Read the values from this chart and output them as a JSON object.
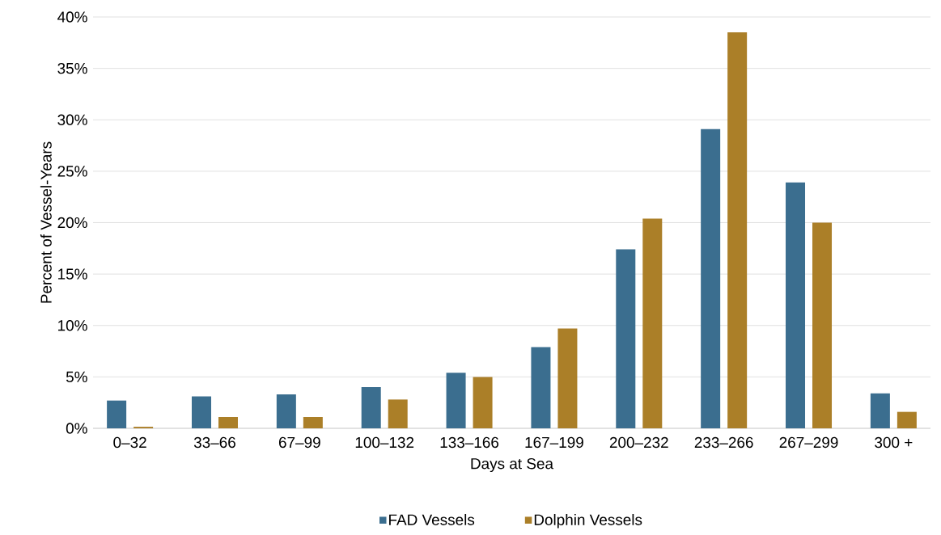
{
  "chart_data": {
    "type": "bar",
    "xlabel": "Days at Sea",
    "ylabel": "Percent of Vessel-Years",
    "categories": [
      "0–32",
      "33–66",
      "67–99",
      "100–132",
      "133–166",
      "167–199",
      "200–232",
      "233–266",
      "267–299",
      "300 +"
    ],
    "series": [
      {
        "name": "FAD Vessels",
        "color": "#3b6e8f",
        "values": [
          2.7,
          3.1,
          3.3,
          4.0,
          5.4,
          7.9,
          17.4,
          29.1,
          23.9,
          3.4
        ]
      },
      {
        "name": "Dolphin Vessels",
        "color": "#ab7f28",
        "values": [
          0.15,
          1.1,
          1.1,
          2.8,
          5.0,
          9.7,
          20.4,
          38.5,
          20.0,
          1.6
        ]
      }
    ],
    "ylim": [
      0,
      40
    ],
    "yticks": [
      {
        "value": 0,
        "label": "0%"
      },
      {
        "value": 5,
        "label": "5%"
      },
      {
        "value": 10,
        "label": "10%"
      },
      {
        "value": 15,
        "label": "15%"
      },
      {
        "value": 20,
        "label": "20%"
      },
      {
        "value": 25,
        "label": "25%"
      },
      {
        "value": 30,
        "label": "30%"
      },
      {
        "value": 35,
        "label": "35%"
      },
      {
        "value": 40,
        "label": "40%"
      }
    ],
    "grid": "y",
    "legend": "bottom"
  }
}
